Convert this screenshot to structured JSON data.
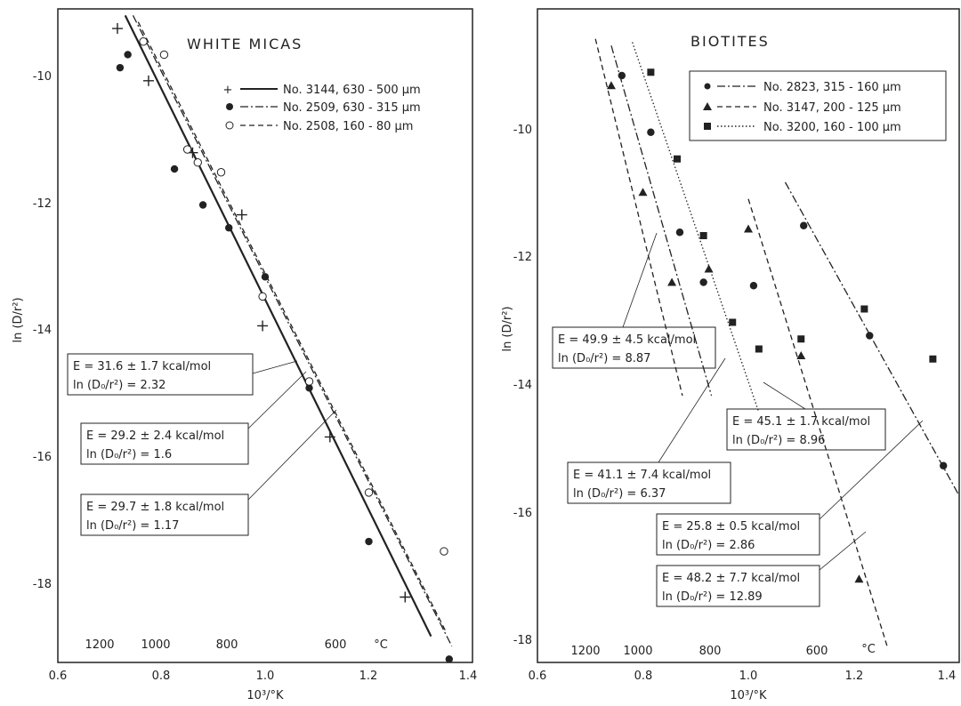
{
  "charts": [
    {
      "title": "WHITE MICAS",
      "type": "scatter",
      "xlabel": "10³/°K",
      "ylabel": "ln (D/r²)",
      "xlim": [
        0.6,
        1.4
      ],
      "ylim": [
        -19.0,
        -9.0
      ],
      "xticks": [
        "0.6",
        "0.8",
        "1.0",
        "1.2",
        "1.4"
      ],
      "yticks": [
        "-10",
        "-12",
        "-14",
        "-16",
        "-18"
      ],
      "temperature_scale": {
        "labels": [
          "1200",
          "1000",
          "800",
          "600"
        ],
        "unit": "°C"
      },
      "series": [
        {
          "label": "No. 3144, 630 - 500 µm",
          "marker": "plus",
          "line": "solid",
          "points": [
            [
              0.715,
              -9.3
            ],
            [
              0.775,
              -10.1
            ],
            [
              0.86,
              -11.2
            ],
            [
              0.955,
              -12.15
            ],
            [
              0.995,
              -13.85
            ],
            [
              1.125,
              -15.55
            ],
            [
              1.27,
              -18.0
            ]
          ],
          "fit": [
            [
              0.73,
              -9.1
            ],
            [
              1.32,
              -18.6
            ]
          ]
        },
        {
          "label": "No. 2509, 630 - 315 µm",
          "marker": "dot",
          "line": "dash-dot",
          "points": [
            [
              0.72,
              -9.9
            ],
            [
              0.735,
              -9.7
            ],
            [
              0.825,
              -11.45
            ],
            [
              0.88,
              -12.0
            ],
            [
              0.93,
              -12.35
            ],
            [
              1.0,
              -13.1
            ],
            [
              1.085,
              -14.8
            ],
            [
              1.2,
              -17.15
            ],
            [
              1.355,
              -18.95
            ]
          ],
          "fit": [
            [
              0.745,
              -9.1
            ],
            [
              1.36,
              -18.75
            ]
          ]
        },
        {
          "label": "No. 2508, 160 -  80 µm",
          "marker": "circle",
          "line": "dashed",
          "points": [
            [
              0.765,
              -9.5
            ],
            [
              0.805,
              -9.7
            ],
            [
              0.85,
              -11.15
            ],
            [
              0.87,
              -11.35
            ],
            [
              0.915,
              -11.5
            ],
            [
              0.995,
              -13.4
            ],
            [
              1.085,
              -14.7
            ],
            [
              1.2,
              -16.4
            ],
            [
              1.345,
              -17.3
            ]
          ],
          "fit": [
            [
              0.755,
              -9.2
            ],
            [
              1.35,
              -18.55
            ]
          ]
        }
      ],
      "annotations": [
        {
          "text": "E = 31.6 ± 1.7 kcal/mol",
          "text2": "ln (D₀/r²) = 2.32"
        },
        {
          "text": "E = 29.2 ± 2.4 kcal/mol",
          "text2": "ln (D₀/r²) = 1.6"
        },
        {
          "text": "E = 29.7 ± 1.8 kcal/mol",
          "text2": "ln (D₀/r²) = 1.17"
        }
      ]
    },
    {
      "title": "BIOTITES",
      "type": "scatter",
      "xlabel": "10³/°K",
      "ylabel": "ln (D/r²)",
      "xlim": [
        0.6,
        1.4
      ],
      "ylim": [
        -18.0,
        -8.2
      ],
      "xticks": [
        "0.6",
        "0.8",
        "1.0",
        "1.2",
        "1.4"
      ],
      "yticks": [
        "-10",
        "-12",
        "-14",
        "-16",
        "-18"
      ],
      "temperature_scale": {
        "labels": [
          "1200",
          "1000",
          "800",
          "600"
        ],
        "unit": "°C"
      },
      "series": [
        {
          "label": "No. 2823, 315 - 160 µm",
          "marker": "dot",
          "line": "dash-dot",
          "points": [
            [
              0.76,
              -9.2
            ],
            [
              0.815,
              -10.05
            ],
            [
              0.87,
              -11.55
            ],
            [
              0.915,
              -12.3
            ],
            [
              1.01,
              -12.35
            ],
            [
              1.105,
              -11.45
            ],
            [
              1.23,
              -13.1
            ],
            [
              1.37,
              -15.05
            ]
          ],
          "fits": [
            [
              [
                0.74,
                -8.75
              ],
              [
                0.93,
                -14.0
              ]
            ],
            [
              [
                1.07,
                -10.8
              ],
              [
                1.4,
                -15.5
              ]
            ]
          ]
        },
        {
          "label": "No. 3147, 200 - 125 µm",
          "marker": "triangle",
          "line": "dashed",
          "points": [
            [
              0.74,
              -9.35
            ],
            [
              0.8,
              -10.95
            ],
            [
              0.855,
              -12.3
            ],
            [
              0.925,
              -12.1
            ],
            [
              1.0,
              -11.5
            ],
            [
              1.1,
              -13.4
            ],
            [
              1.21,
              -16.75
            ]
          ],
          "fits": [
            [
              [
                0.71,
                -8.65
              ],
              [
                0.875,
                -14.0
              ]
            ],
            [
              [
                1.0,
                -11.05
              ],
              [
                1.265,
                -17.8
              ]
            ]
          ]
        },
        {
          "label": "No. 3200, 160 - 100 µm",
          "marker": "square",
          "line": "dotted",
          "points": [
            [
              0.815,
              -9.15
            ],
            [
              0.865,
              -10.45
            ],
            [
              0.915,
              -11.6
            ],
            [
              0.97,
              -12.9
            ],
            [
              1.02,
              -13.3
            ],
            [
              1.1,
              -13.15
            ],
            [
              1.22,
              -12.7
            ],
            [
              1.35,
              -13.45
            ]
          ],
          "fits": [
            [
              [
                0.78,
                -8.7
              ],
              [
                1.02,
                -14.25
              ]
            ]
          ]
        }
      ],
      "annotations": [
        {
          "text": "E = 49.9 ± 4.5 kcal/mol",
          "text2": "ln (D₀/r²) = 8.87"
        },
        {
          "text": "E = 45.1 ± 1.7 kcal/mol",
          "text2": "ln (D₀/r²) = 8.96"
        },
        {
          "text": "E = 41.1 ± 7.4 kcal/mol",
          "text2": "ln (D₀/r²) = 6.37"
        },
        {
          "text": "E = 25.8 ± 0.5 kcal/mol",
          "text2": "ln (D₀/r²) = 2.86"
        },
        {
          "text": "E = 48.2 ± 7.7 kcal/mol",
          "text2": "ln (D₀/r²) = 12.89"
        }
      ]
    }
  ]
}
